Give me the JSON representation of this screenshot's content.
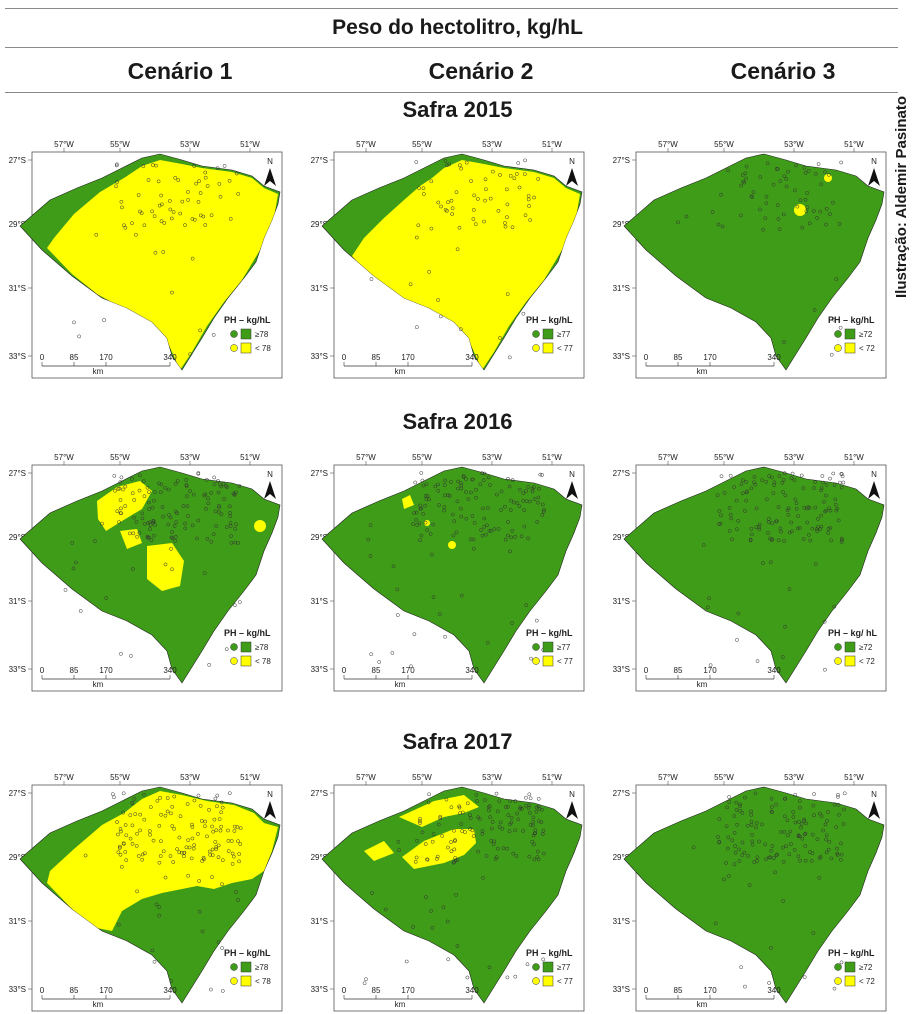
{
  "title": "Peso do hectolitro, kg/hL",
  "scenarios": [
    "Cenário 1",
    "Cenário 2",
    "Cenário 3"
  ],
  "credit": "Ilustração: Aldemir Pasinato",
  "colors": {
    "high": "#3f9c18",
    "low": "#ffff00",
    "outline": "#222222"
  },
  "map_labels": {
    "lon": [
      "57°W",
      "55°W",
      "53°W",
      "51°W"
    ],
    "lat": [
      "27°S",
      "29°S",
      "31°S",
      "33°S"
    ],
    "scale": [
      "0",
      "85",
      "170",
      "340"
    ],
    "scale_unit": "km",
    "north": "N"
  },
  "safras": [
    {
      "label": "Safra 2015",
      "maps": [
        {
          "legend_title": "PH – kg/hL",
          "high": "≥78",
          "low": "< 78"
        },
        {
          "legend_title": "PH – kg/hL",
          "high": "≥77",
          "low": "< 77"
        },
        {
          "legend_title": "PH – kg/hL",
          "high": "≥72",
          "low": "< 72"
        }
      ]
    },
    {
      "label": "Safra 2016",
      "maps": [
        {
          "legend_title": "PH – kg/hL",
          "high": "≥78",
          "low": "< 78"
        },
        {
          "legend_title": "PH – kg/hL",
          "high": "≥77",
          "low": "< 77"
        },
        {
          "legend_title": "PH  – kg/ hL",
          "high": "≥72",
          "low": "< 72"
        }
      ]
    },
    {
      "label": "Safra 2017",
      "maps": [
        {
          "legend_title": "PH – kg/hL",
          "high": "≥78",
          "low": "< 78"
        },
        {
          "legend_title": "PH – kg/hL",
          "high": "≥77",
          "low": "< 77"
        },
        {
          "legend_title": "PH – kg/hL",
          "high": "≥72",
          "low": "< 72"
        }
      ]
    }
  ]
}
